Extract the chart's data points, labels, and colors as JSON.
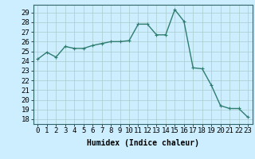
{
  "x": [
    0,
    1,
    2,
    3,
    4,
    5,
    6,
    7,
    8,
    9,
    10,
    11,
    12,
    13,
    14,
    15,
    16,
    17,
    18,
    19,
    20,
    21,
    22,
    23
  ],
  "y": [
    24.2,
    24.9,
    24.4,
    25.5,
    25.3,
    25.3,
    25.6,
    25.8,
    26.0,
    26.0,
    26.1,
    27.8,
    27.8,
    26.7,
    26.7,
    29.3,
    28.1,
    23.3,
    23.2,
    21.5,
    19.4,
    19.1,
    19.1,
    18.2
  ],
  "line_color": "#2e7d6e",
  "marker": "+",
  "marker_size": 3,
  "background_color": "#cceeff",
  "grid_color": "#aacccc",
  "xlabel": "Humidex (Indice chaleur)",
  "xlim": [
    -0.5,
    23.5
  ],
  "ylim": [
    17.5,
    29.8
  ],
  "yticks": [
    18,
    19,
    20,
    21,
    22,
    23,
    24,
    25,
    26,
    27,
    28,
    29
  ],
  "xticks": [
    0,
    1,
    2,
    3,
    4,
    5,
    6,
    7,
    8,
    9,
    10,
    11,
    12,
    13,
    14,
    15,
    16,
    17,
    18,
    19,
    20,
    21,
    22,
    23
  ],
  "xlabel_fontsize": 7,
  "tick_fontsize": 6.5,
  "linewidth": 1.0,
  "markeredgewidth": 0.8
}
